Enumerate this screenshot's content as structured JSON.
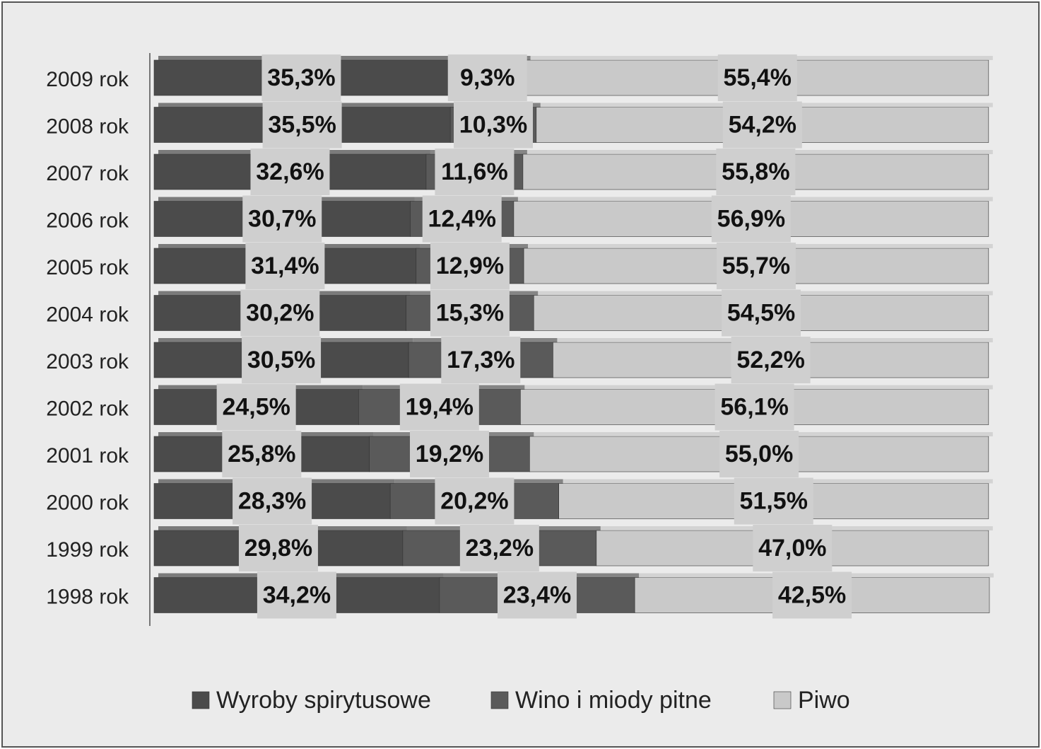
{
  "chart_data": {
    "type": "stacked-bar-horizontal",
    "categories": [
      "2009 rok",
      "2008 rok",
      "2007 rok",
      "2006 rok",
      "2005 rok",
      "2004 rok",
      "2003 rok",
      "2002 rok",
      "2001 rok",
      "2000 rok",
      "1999 rok",
      "1998 rok"
    ],
    "series": [
      {
        "name": "Wyroby spirytusowe",
        "color": "#4b4b4b",
        "values": [
          35.3,
          35.5,
          32.6,
          30.7,
          31.4,
          30.2,
          30.5,
          24.5,
          25.8,
          28.3,
          29.8,
          34.2
        ],
        "value_labels": [
          "35,3%",
          "35,5%",
          "32,6%",
          "30,7%",
          "31,4%",
          "30,2%",
          "30,5%",
          "24,5%",
          "25,8%",
          "28,3%",
          "29,8%",
          "34,2%"
        ]
      },
      {
        "name": "Wino i miody pitne",
        "color": "#5a5a5a",
        "values": [
          9.3,
          10.3,
          11.6,
          12.4,
          12.9,
          15.3,
          17.3,
          19.4,
          19.2,
          20.2,
          23.2,
          23.4
        ],
        "value_labels": [
          "9,3%",
          "10,3%",
          "11,6%",
          "12,4%",
          "12,9%",
          "15,3%",
          "17,3%",
          "19,4%",
          "19,2%",
          "20,2%",
          "23,2%",
          "23,4%"
        ]
      },
      {
        "name": "Piwo",
        "color": "#c9c9c9",
        "values": [
          55.4,
          54.2,
          55.8,
          56.9,
          55.7,
          54.5,
          52.2,
          56.1,
          55.0,
          51.5,
          47.0,
          42.5
        ],
        "value_labels": [
          "55,4%",
          "54,2%",
          "55,8%",
          "56,9%",
          "55,7%",
          "54,5%",
          "52,2%",
          "56,1%",
          "55,0%",
          "51,5%",
          "47,0%",
          "42,5%"
        ]
      }
    ]
  }
}
